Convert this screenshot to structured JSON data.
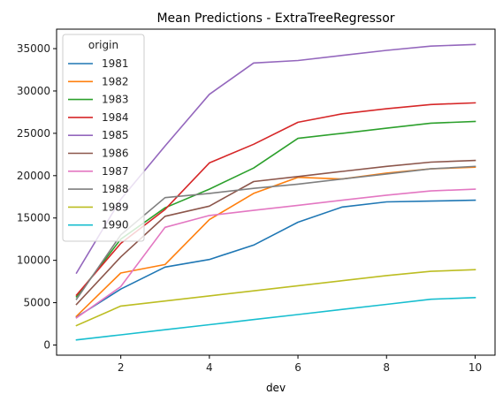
{
  "chart_data": {
    "type": "line",
    "title": "Mean Predictions - ExtraTreeRegressor",
    "xlabel": "dev",
    "ylabel": "",
    "xlim": [
      0.55,
      10.45
    ],
    "ylim": [
      -1200,
      37300
    ],
    "xticks": [
      2,
      4,
      6,
      8,
      10
    ],
    "yticks": [
      0,
      5000,
      10000,
      15000,
      20000,
      25000,
      30000,
      35000
    ],
    "grid": false,
    "legend": {
      "title": "origin",
      "placement": "top-left"
    },
    "x": [
      1,
      2,
      3,
      4,
      5,
      6,
      7,
      8,
      9,
      10
    ],
    "series": [
      {
        "name": "1981",
        "color": "#1f77b4",
        "values": [
          3300,
          6600,
          9200,
          10100,
          11800,
          14500,
          16300,
          16900,
          17000,
          17100
        ]
      },
      {
        "name": "1982",
        "color": "#ff7f0e",
        "values": [
          3400,
          8500,
          9500,
          14800,
          17900,
          19800,
          19600,
          20300,
          20800,
          21000
        ]
      },
      {
        "name": "1983",
        "color": "#2ca02c",
        "values": [
          5700,
          12500,
          16200,
          18400,
          20900,
          24400,
          25000,
          25600,
          26200,
          26400
        ]
      },
      {
        "name": "1984",
        "color": "#d62728",
        "values": [
          5900,
          12000,
          16000,
          21500,
          23700,
          26300,
          27300,
          27900,
          28400,
          28600
        ]
      },
      {
        "name": "1985",
        "color": "#9467bd",
        "values": [
          8500,
          17200,
          23500,
          29600,
          33300,
          33600,
          34200,
          34800,
          35300,
          35500
        ]
      },
      {
        "name": "1986",
        "color": "#8c564b",
        "values": [
          4800,
          10400,
          15200,
          16400,
          19300,
          19900,
          20500,
          21100,
          21600,
          21800
        ]
      },
      {
        "name": "1987",
        "color": "#e377c2",
        "values": [
          3200,
          6900,
          13900,
          15300,
          15900,
          16500,
          17100,
          17700,
          18200,
          18400
        ]
      },
      {
        "name": "1988",
        "color": "#7f7f7f",
        "values": [
          5400,
          13000,
          17400,
          17900,
          18500,
          19000,
          19600,
          20200,
          20800,
          21100
        ]
      },
      {
        "name": "1989",
        "color": "#bcbd22",
        "values": [
          2300,
          4600,
          5200,
          5800,
          6400,
          7000,
          7600,
          8200,
          8700,
          8900
        ]
      },
      {
        "name": "1990",
        "color": "#17becf",
        "values": [
          600,
          1200,
          1800,
          2400,
          3000,
          3600,
          4200,
          4800,
          5400,
          5600
        ]
      }
    ]
  }
}
